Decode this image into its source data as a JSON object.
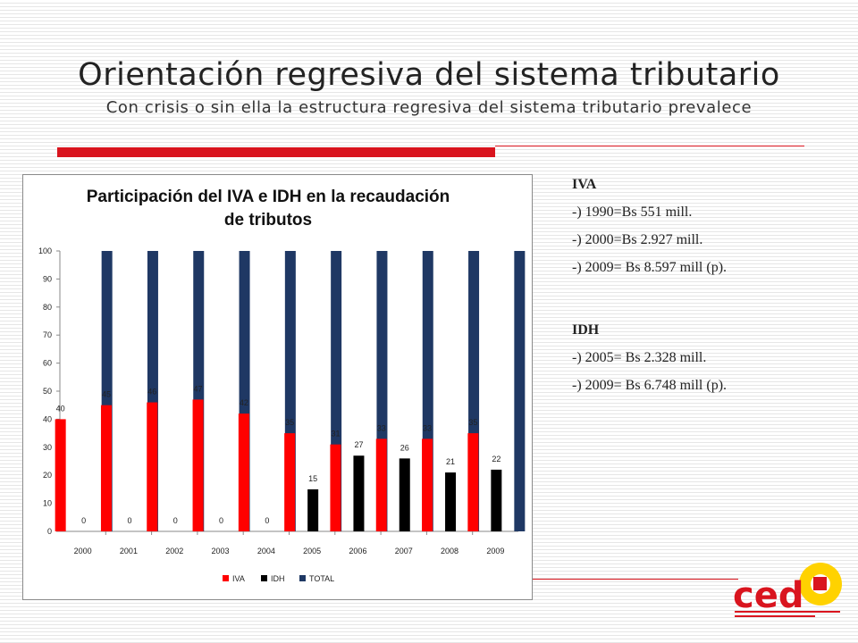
{
  "slide": {
    "title": "Orientación regresiva del sistema tributario",
    "subtitle": "Con crisis o sin ella la estructura regresiva del sistema tributario prevalece"
  },
  "notes": {
    "iva_heading": "IVA",
    "iva_items": [
      "-) 1990=Bs 551 mill.",
      "-) 2000=Bs 2.927 mill.",
      "-) 2009= Bs 8.597 mill (p)."
    ],
    "idh_heading": "IDH",
    "idh_items": [
      "-) 2005= Bs 2.328 mill.",
      "-) 2009= Bs 6.748 mill (p)."
    ]
  },
  "logo": {
    "text": "ced"
  },
  "colors": {
    "accent": "#d9141e",
    "iva": "#ff0000",
    "idh": "#000000",
    "total": "#1f3864",
    "logo_yellow": "#ffd200"
  },
  "chart_data": {
    "type": "bar",
    "title": "Participación del IVA e IDH en la recaudación de tributos",
    "title_lines": [
      "Participación del IVA e IDH en la recaudación",
      "de tributos"
    ],
    "categories": [
      "2000",
      "2001",
      "2002",
      "2003",
      "2004",
      "2005",
      "2006",
      "2007",
      "2008",
      "2009"
    ],
    "series": [
      {
        "name": "IVA",
        "color": "#ff0000",
        "values": [
          40,
          45,
          46,
          47,
          42,
          35,
          31,
          33,
          33,
          35
        ]
      },
      {
        "name": "IDH",
        "color": "#000000",
        "values": [
          0,
          0,
          0,
          0,
          0,
          15,
          27,
          26,
          21,
          22
        ]
      },
      {
        "name": "TOTAL",
        "color": "#1f3864",
        "values": [
          100,
          100,
          100,
          100,
          100,
          100,
          100,
          100,
          100,
          100
        ]
      }
    ],
    "data_labels": {
      "IVA": [
        "40",
        "45",
        "46",
        "47",
        "42",
        "35",
        "31",
        "33",
        "33",
        "35"
      ],
      "IDH": [
        "0",
        "0",
        "0",
        "0",
        "0",
        "15",
        "27",
        "26",
        "21",
        "22"
      ]
    },
    "ylim": [
      0,
      100
    ],
    "yticks": [
      0,
      10,
      20,
      30,
      40,
      50,
      60,
      70,
      80,
      90,
      100
    ],
    "ytick_labels": [
      "0",
      "10",
      "20",
      "30",
      "40",
      "50",
      "60",
      "70",
      "80",
      "90",
      "100"
    ],
    "xlabel": "",
    "ylabel": "",
    "legend": "bottom",
    "grid": false
  }
}
